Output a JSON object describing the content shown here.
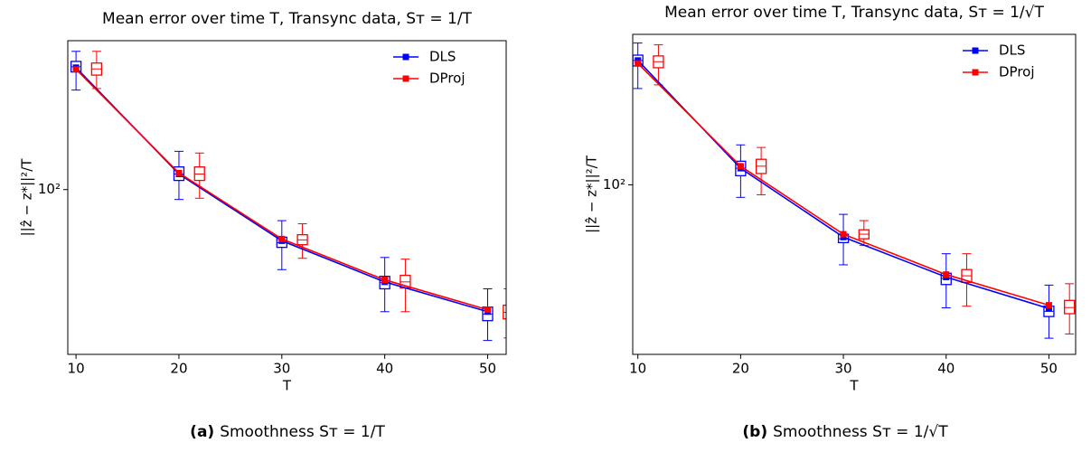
{
  "chart_data": [
    {
      "type": "box-line",
      "title": "Mean error over time T, Transync data, Sᴛ = 1/T",
      "xlabel": "T",
      "ylabel": "||ẑ − z*||²/T",
      "log_y": true,
      "xlim": [
        9.2,
        51.8
      ],
      "ylim": [
        25,
        350
      ],
      "xticks": [
        10,
        20,
        30,
        40,
        50
      ],
      "yticks": [
        {
          "value": 100,
          "label": "10²"
        }
      ],
      "legend": "upper right",
      "series": [
        {
          "name": "DLS",
          "color": "#0000ff",
          "x": [
            10,
            20,
            30,
            40,
            50
          ],
          "values": [
            279,
            114,
            65,
            46,
            35.8
          ],
          "box_x": [
            10,
            20,
            30,
            40,
            50
          ],
          "whislo": [
            231,
            92,
            51,
            35.8,
            28.1
          ],
          "q1": [
            269,
            108,
            61.5,
            43.4,
            33.2
          ],
          "median": [
            281,
            114,
            64,
            45.7,
            35.1
          ],
          "q3": [
            294,
            121,
            67,
            48.2,
            37.2
          ],
          "whishi": [
            320,
            138,
            77,
            56.5,
            43.4
          ]
        },
        {
          "name": "DProj",
          "color": "#ff0000",
          "x": [
            10,
            20,
            30,
            40,
            50
          ],
          "values": [
            275,
            115,
            66,
            46.8,
            36.4
          ],
          "box_x": [
            12,
            22,
            32,
            42,
            52
          ],
          "whislo": [
            234,
            93,
            56.1,
            35.8,
            28.7
          ],
          "q1": [
            262,
            108,
            62.9,
            43.7,
            33.7
          ],
          "median": [
            276,
            114,
            65.5,
            46,
            35.6
          ],
          "q3": [
            290,
            121,
            68.4,
            48.6,
            37.8
          ],
          "whishi": [
            320,
            136,
            75,
            55.7,
            43.4
          ]
        }
      ]
    },
    {
      "type": "box-line",
      "title": "Mean error over time T, Transync data, Sᴛ = 1/√T",
      "xlabel": "T",
      "ylabel": "||ẑ − z*||²/T",
      "log_y": true,
      "xlim": [
        9.5,
        52.6
      ],
      "ylim": [
        24,
        355
      ],
      "xticks": [
        10,
        20,
        30,
        40,
        50
      ],
      "yticks": [
        {
          "value": 100,
          "label": "10²"
        }
      ],
      "legend": "upper right",
      "series": [
        {
          "name": "DLS",
          "color": "#0000ff",
          "x": [
            10,
            20,
            30,
            40,
            50
          ],
          "values": [
            285,
            115,
            64.4,
            46,
            35.3
          ],
          "box_x": [
            10,
            20,
            30,
            40,
            50
          ],
          "whislo": [
            225,
            90,
            51,
            35.5,
            27.5
          ],
          "q1": [
            272,
            108,
            61.5,
            43.2,
            33
          ],
          "median": [
            285,
            115,
            63.5,
            45.5,
            34.5
          ],
          "q3": [
            298,
            122,
            66,
            47.5,
            36
          ],
          "whishi": [
            330,
            140,
            78,
            56,
            43
          ]
        },
        {
          "name": "DProj",
          "color": "#ff0000",
          "x": [
            10,
            20,
            30,
            40,
            50
          ],
          "values": [
            278,
            117,
            66,
            47,
            36.3
          ],
          "box_x": [
            12,
            22,
            32,
            42,
            52
          ],
          "whislo": [
            232,
            92,
            60,
            36,
            28.5
          ],
          "q1": [
            268,
            110,
            63.5,
            44,
            33.8
          ],
          "median": [
            282,
            117,
            66,
            46.5,
            35.6
          ],
          "q3": [
            296,
            124,
            68.5,
            49,
            37.8
          ],
          "whishi": [
            325,
            137,
            74,
            56,
            43.5
          ]
        }
      ]
    }
  ],
  "captions": [
    {
      "label": "(a)",
      "text": "Smoothness Sᴛ = 1/T"
    },
    {
      "label": "(b)",
      "text": "Smoothness Sᴛ = 1/√T"
    }
  ]
}
